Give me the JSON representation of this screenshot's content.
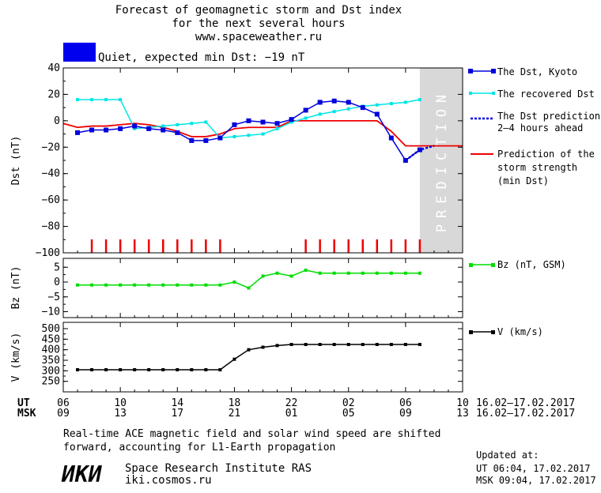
{
  "header": {
    "title_line1": "Forecast of geomagnetic storm and Dst index",
    "title_line2": "for the next several hours",
    "url": "www.spaceweather.ru",
    "status_text": "Quiet, expected min Dst: −19 nT",
    "status_color": "#0000ee"
  },
  "prediction_label": "PREDICTION",
  "chart_data": [
    {
      "type": "line",
      "panel": "dst",
      "ylabel": "Dst (nT)",
      "ylim": [
        -100,
        40
      ],
      "yticks": [
        40,
        20,
        0,
        -20,
        -40,
        -60,
        -80,
        -100
      ],
      "x_unit": "hours since 06 UT 16.02",
      "xlim": [
        0,
        28
      ],
      "prediction_region": [
        25,
        28
      ],
      "series": [
        {
          "name": "The Dst, Kyoto",
          "color": "#0000dd",
          "x": [
            1,
            2,
            3,
            4,
            5,
            6,
            7,
            8,
            9,
            10,
            11,
            12,
            13,
            14,
            15,
            16,
            17,
            18,
            19,
            20,
            21,
            22,
            23,
            24,
            25
          ],
          "values": [
            -9,
            -7,
            -7,
            -6,
            -4,
            -6,
            -7,
            -9,
            -15,
            -15,
            -13,
            -3,
            0,
            -1,
            -2,
            1,
            8,
            14,
            15,
            14,
            10,
            5,
            -13,
            -30,
            -22
          ]
        },
        {
          "name": "The recovered Dst",
          "color": "#00e5e5",
          "x": [
            1,
            2,
            3,
            4,
            5,
            6,
            7,
            8,
            9,
            10,
            11,
            12,
            13,
            14,
            15,
            16,
            17,
            18,
            19,
            20,
            21,
            22,
            23,
            24,
            25
          ],
          "values": [
            16,
            16,
            16,
            16,
            -6,
            -5,
            -4,
            -3,
            -2,
            -1,
            -13,
            -12,
            -11,
            -10,
            -6,
            -1,
            2,
            5,
            7,
            9,
            11,
            12,
            13,
            14,
            16
          ]
        },
        {
          "name": "The Dst prediction 2–4 hours ahead",
          "color": "#0000dd",
          "dashed": true,
          "x": [
            24,
            25,
            26
          ],
          "values": [
            -30,
            -22,
            -19
          ]
        },
        {
          "name": "Prediction of the storm strength (min Dst)",
          "color": "#ee0000",
          "x": [
            0,
            1,
            2,
            3,
            4,
            5,
            6,
            7,
            8,
            9,
            10,
            11,
            12,
            13,
            14,
            15,
            16,
            17,
            18,
            19,
            20,
            21,
            22,
            23,
            24,
            25,
            26,
            27,
            28
          ],
          "values": [
            -2,
            -5,
            -4,
            -4,
            -3,
            -2,
            -3,
            -5,
            -8,
            -12,
            -12,
            -10,
            -6,
            -5,
            -5,
            -5,
            0,
            0,
            0,
            0,
            0,
            0,
            0,
            -8,
            -19,
            -19,
            -19,
            -19,
            -19
          ]
        }
      ],
      "red_marks_x": [
        2,
        3,
        4,
        5,
        6,
        7,
        8,
        9,
        10,
        11,
        17,
        18,
        19,
        20,
        21,
        22,
        23,
        24,
        25
      ]
    },
    {
      "type": "line",
      "panel": "bz",
      "ylabel": "Bz (nT)",
      "ylim": [
        -12,
        8
      ],
      "yticks": [
        5,
        0,
        -5,
        -10
      ],
      "series": [
        {
          "name": "Bz (nT, GSM)",
          "color": "#00dd00",
          "x": [
            1,
            2,
            3,
            4,
            5,
            6,
            7,
            8,
            9,
            10,
            11,
            12,
            13,
            14,
            15,
            16,
            17,
            18,
            19,
            20,
            21,
            22,
            23,
            24,
            25
          ],
          "values": [
            -1,
            -1,
            -1,
            -1,
            -1,
            -1,
            -1,
            -1,
            -1,
            -1,
            -1,
            0,
            -2,
            2,
            3,
            2,
            4,
            3,
            3,
            3,
            3,
            3,
            3,
            3,
            3
          ]
        }
      ]
    },
    {
      "type": "line",
      "panel": "v",
      "ylabel": "V (km/s)",
      "ylim": [
        200,
        530
      ],
      "yticks": [
        500,
        450,
        400,
        350,
        300,
        250
      ],
      "series": [
        {
          "name": "V (km/s)",
          "color": "#000000",
          "x": [
            1,
            2,
            3,
            4,
            5,
            6,
            7,
            8,
            9,
            10,
            11,
            12,
            13,
            14,
            15,
            16,
            17,
            18,
            19,
            20,
            21,
            22,
            23,
            24,
            25
          ],
          "values": [
            305,
            305,
            305,
            305,
            305,
            305,
            305,
            305,
            305,
            305,
            305,
            355,
            400,
            412,
            420,
            425,
            425,
            425,
            425,
            425,
            425,
            425,
            425,
            425,
            425
          ]
        }
      ]
    }
  ],
  "time_axis": {
    "ut_label": "UT",
    "msk_label": "MSK",
    "ut_ticks": [
      "06",
      "10",
      "14",
      "18",
      "22",
      "02",
      "06",
      "10"
    ],
    "msk_ticks": [
      "09",
      "13",
      "17",
      "21",
      "01",
      "05",
      "09",
      "13"
    ],
    "tick_x": [
      0,
      4,
      8,
      12,
      16,
      20,
      24,
      28
    ],
    "date_range_ut": "16.02–17.02.2017",
    "date_range_msk": "16.02–17.02.2017"
  },
  "legend": {
    "dst_kyoto": "The Dst, Kyoto",
    "recovered": "The recovered Dst",
    "prediction_line1": "The Dst prediction",
    "prediction_line2": "2–4 hours ahead",
    "storm_line1": "Prediction of the",
    "storm_line2": "storm strength",
    "storm_line3": "(min Dst)",
    "bz": "Bz (nT, GSM)",
    "v": "V (km/s)"
  },
  "footer": {
    "note_line1": "Real-time ACE magnetic field and solar wind speed are shifted",
    "note_line2": "forward, accounting for L1-Earth propagation",
    "logo_text": "ИКИ",
    "institute": "Space Research Institute RAS",
    "site": "iki.cosmos.ru",
    "updated_label": "Updated at:",
    "updated_ut": "UT   06:04, 17.02.2017",
    "updated_msk": "MSK 09:04, 17.02.2017"
  }
}
